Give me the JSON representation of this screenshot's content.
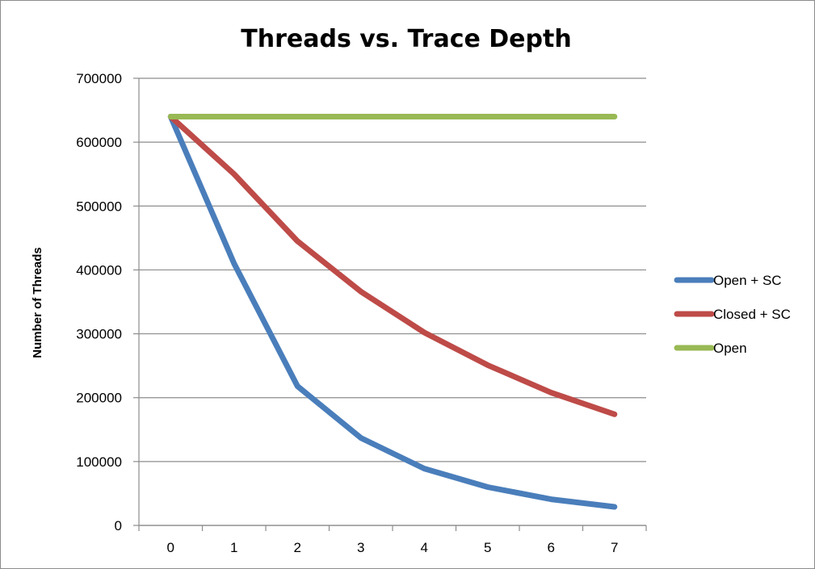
{
  "chart_data": {
    "type": "line",
    "title": "Threads vs. Trace Depth",
    "xlabel": "",
    "ylabel": "Number of Threads",
    "categories": [
      "0",
      "1",
      "2",
      "3",
      "4",
      "5",
      "6",
      "7"
    ],
    "ylim": [
      0,
      700000
    ],
    "y_ticks": [
      0,
      100000,
      200000,
      300000,
      400000,
      500000,
      600000,
      700000
    ],
    "grid": true,
    "legend_position": "right",
    "series": [
      {
        "name": "Open + SC",
        "color": "#4a7ebb",
        "values": [
          640000,
          410000,
          218000,
          137000,
          89000,
          60000,
          41000,
          29000
        ]
      },
      {
        "name": "Closed + SC",
        "color": "#be4b48",
        "values": [
          640000,
          550000,
          445000,
          366000,
          302000,
          251000,
          208000,
          174000
        ]
      },
      {
        "name": "Open",
        "color": "#98b954",
        "values": [
          640000,
          640000,
          640000,
          640000,
          640000,
          640000,
          640000,
          640000
        ]
      }
    ]
  }
}
